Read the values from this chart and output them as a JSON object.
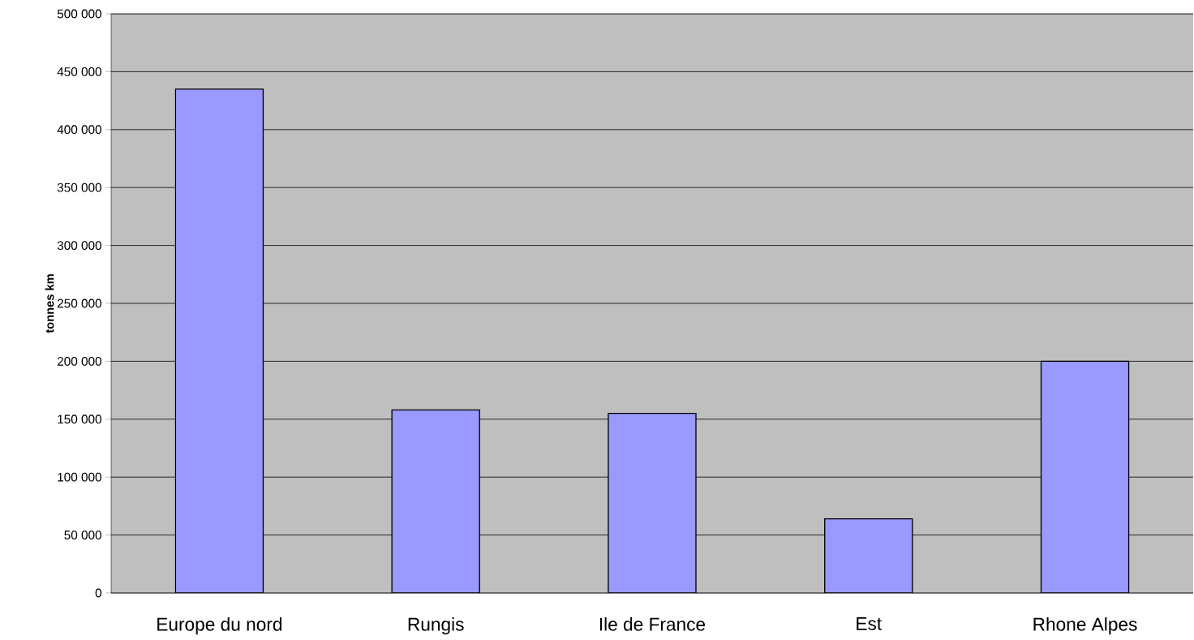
{
  "chart_data": {
    "type": "bar",
    "ylabel": "tonnes km",
    "categories": [
      "Europe du nord",
      "Rungis",
      "Ile de France",
      "Est",
      "Rhone Alpes"
    ],
    "values": [
      435000,
      158000,
      155000,
      64000,
      200000
    ],
    "color": "#9999ff",
    "ylim": [
      0,
      500000
    ],
    "yticks": [
      {
        "value": 0,
        "label": "0"
      },
      {
        "value": 50000,
        "label": "50 000"
      },
      {
        "value": 100000,
        "label": "100 000"
      },
      {
        "value": 150000,
        "label": "150 000"
      },
      {
        "value": 200000,
        "label": "200 000"
      },
      {
        "value": 250000,
        "label": "250 000"
      },
      {
        "value": 300000,
        "label": "300 000"
      },
      {
        "value": 350000,
        "label": "350 000"
      },
      {
        "value": 400000,
        "label": "400 000"
      },
      {
        "value": 450000,
        "label": "450 000"
      },
      {
        "value": 500000,
        "label": "500 000"
      }
    ],
    "grid": "y"
  }
}
